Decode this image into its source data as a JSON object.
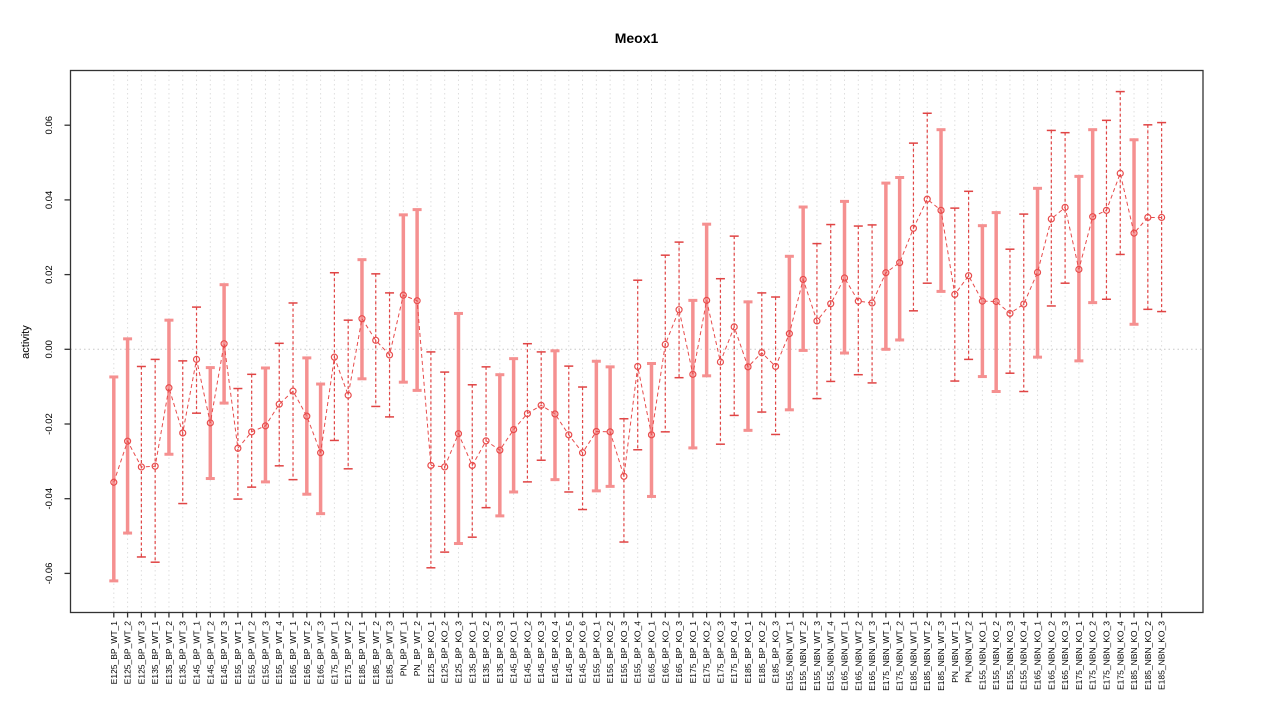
{
  "title": "Meox1",
  "y_axis": {
    "label": "activity"
  },
  "chart_data": {
    "type": "line",
    "title": "Meox1",
    "xlabel": "",
    "ylabel": "activity",
    "ylim": [
      -0.068,
      0.073
    ],
    "yticks": [
      -0.06,
      -0.04,
      -0.02,
      0.0,
      0.02,
      0.04,
      0.06
    ],
    "grid": "vertical-dotted-per-sample, dotted-zero-line",
    "legend_position": "none",
    "style": "open red circles connected by dashed red line, red error bars with caps",
    "colors": {
      "point": "#e84c4c",
      "line": "#e84c4c",
      "error_bar_thin": "#e04444",
      "error_bar_thick": "#f59090",
      "grid": "#dedede",
      "zero_line": "#c8c8c8",
      "axis": "#333333",
      "text": "#000000",
      "background": "#ffffff"
    },
    "points": [
      {
        "label": "E125_BP_WT_1",
        "lo": -0.062,
        "value": -0.0356,
        "hi": -0.0074
      },
      {
        "label": "E125_BP_WT_2",
        "lo": -0.0492,
        "value": -0.0246,
        "hi": 0.0028
      },
      {
        "label": "E125_BP_WT_3",
        "lo": -0.0556,
        "value": -0.0315,
        "hi": -0.0046
      },
      {
        "label": "E135_BP_WT_1",
        "lo": -0.057,
        "value": -0.0313,
        "hi": -0.0027
      },
      {
        "label": "E135_BP_WT_2",
        "lo": -0.0281,
        "value": -0.0103,
        "hi": 0.0078
      },
      {
        "label": "E135_BP_WT_3",
        "lo": -0.0413,
        "value": -0.0224,
        "hi": -0.0031
      },
      {
        "label": "E145_BP_WT_1",
        "lo": -0.0171,
        "value": -0.0027,
        "hi": 0.0113
      },
      {
        "label": "E145_BP_WT_2",
        "lo": -0.0346,
        "value": -0.0197,
        "hi": -0.0049
      },
      {
        "label": "E145_BP_WT_3",
        "lo": -0.0144,
        "value": 0.0015,
        "hi": 0.0173
      },
      {
        "label": "E155_BP_WT_1",
        "lo": -0.0401,
        "value": -0.0265,
        "hi": -0.0105
      },
      {
        "label": "E155_BP_WT_2",
        "lo": -0.0369,
        "value": -0.0221,
        "hi": -0.0067
      },
      {
        "label": "E155_BP_WT_3",
        "lo": -0.0355,
        "value": -0.0205,
        "hi": -0.005
      },
      {
        "label": "E155_BP_WT_4",
        "lo": -0.0312,
        "value": -0.0147,
        "hi": 0.0016
      },
      {
        "label": "E165_BP_WT_1",
        "lo": -0.0349,
        "value": -0.0112,
        "hi": 0.0124
      },
      {
        "label": "E165_BP_WT_2",
        "lo": -0.0388,
        "value": -0.0179,
        "hi": -0.0023
      },
      {
        "label": "E165_BP_WT_3",
        "lo": -0.044,
        "value": -0.0277,
        "hi": -0.0093
      },
      {
        "label": "E175_BP_WT_1",
        "lo": -0.0244,
        "value": -0.0021,
        "hi": 0.0205
      },
      {
        "label": "E175_BP_WT_2",
        "lo": -0.032,
        "value": -0.0123,
        "hi": 0.0078
      },
      {
        "label": "E185_BP_WT_1",
        "lo": -0.0079,
        "value": 0.0082,
        "hi": 0.024
      },
      {
        "label": "E185_BP_WT_2",
        "lo": -0.0153,
        "value": 0.0024,
        "hi": 0.0202
      },
      {
        "label": "E185_BP_WT_3",
        "lo": -0.0181,
        "value": -0.0015,
        "hi": 0.0151
      },
      {
        "label": "PN_BP_WT_1",
        "lo": -0.0088,
        "value": 0.0145,
        "hi": 0.036
      },
      {
        "label": "PN_BP_WT_2",
        "lo": -0.011,
        "value": 0.013,
        "hi": 0.0374
      },
      {
        "label": "E125_BP_KO_1",
        "lo": -0.0585,
        "value": -0.0311,
        "hi": -0.0007
      },
      {
        "label": "E125_BP_KO_2",
        "lo": -0.0543,
        "value": -0.0315,
        "hi": -0.0061
      },
      {
        "label": "E125_BP_KO_3",
        "lo": -0.052,
        "value": -0.0226,
        "hi": 0.0096
      },
      {
        "label": "E135_BP_KO_1",
        "lo": -0.0503,
        "value": -0.0311,
        "hi": -0.0095
      },
      {
        "label": "E135_BP_KO_2",
        "lo": -0.0424,
        "value": -0.0245,
        "hi": -0.0047
      },
      {
        "label": "E135_BP_KO_3",
        "lo": -0.0446,
        "value": -0.027,
        "hi": -0.0068
      },
      {
        "label": "E145_BP_KO_1",
        "lo": -0.0382,
        "value": -0.0215,
        "hi": -0.0025
      },
      {
        "label": "E145_BP_KO_2",
        "lo": -0.0355,
        "value": -0.0172,
        "hi": 0.0015
      },
      {
        "label": "E145_BP_KO_3",
        "lo": -0.0297,
        "value": -0.015,
        "hi": -0.0007
      },
      {
        "label": "E145_BP_KO_4",
        "lo": -0.0349,
        "value": -0.0173,
        "hi": -0.0004
      },
      {
        "label": "E145_BP_KO_5",
        "lo": -0.0382,
        "value": -0.0229,
        "hi": -0.0045
      },
      {
        "label": "E145_BP_KO_6",
        "lo": -0.0429,
        "value": -0.0277,
        "hi": -0.0101
      },
      {
        "label": "E155_BP_KO_1",
        "lo": -0.0379,
        "value": -0.022,
        "hi": -0.0032
      },
      {
        "label": "E155_BP_KO_2",
        "lo": -0.0367,
        "value": -0.0221,
        "hi": -0.0047
      },
      {
        "label": "E155_BP_KO_3",
        "lo": -0.0516,
        "value": -0.034,
        "hi": -0.0186
      },
      {
        "label": "E155_BP_KO_4",
        "lo": -0.0269,
        "value": -0.0046,
        "hi": 0.0185
      },
      {
        "label": "E165_BP_KO_1",
        "lo": -0.0394,
        "value": -0.0229,
        "hi": -0.0038
      },
      {
        "label": "E165_BP_KO_2",
        "lo": -0.0221,
        "value": 0.0013,
        "hi": 0.0252
      },
      {
        "label": "E165_BP_KO_3",
        "lo": -0.0076,
        "value": 0.0106,
        "hi": 0.0287
      },
      {
        "label": "E175_BP_KO_1",
        "lo": -0.0264,
        "value": -0.0067,
        "hi": 0.0131
      },
      {
        "label": "E175_BP_KO_2",
        "lo": -0.0071,
        "value": 0.0131,
        "hi": 0.0335
      },
      {
        "label": "E175_BP_KO_3",
        "lo": -0.0254,
        "value": -0.0034,
        "hi": 0.0189
      },
      {
        "label": "E175_BP_KO_4",
        "lo": -0.0177,
        "value": 0.006,
        "hi": 0.0303
      },
      {
        "label": "E185_BP_KO_1",
        "lo": -0.0217,
        "value": -0.0047,
        "hi": 0.0127
      },
      {
        "label": "E185_BP_KO_2",
        "lo": -0.0168,
        "value": -0.0009,
        "hi": 0.0151
      },
      {
        "label": "E185_BP_KO_3",
        "lo": -0.0228,
        "value": -0.0046,
        "hi": 0.014
      },
      {
        "label": "E155_NBN_WT_1",
        "lo": -0.0162,
        "value": 0.0042,
        "hi": 0.0249
      },
      {
        "label": "E155_NBN_WT_2",
        "lo": -0.0003,
        "value": 0.0187,
        "hi": 0.0381
      },
      {
        "label": "E155_NBN_WT_3",
        "lo": -0.0132,
        "value": 0.0076,
        "hi": 0.0283
      },
      {
        "label": "E155_NBN_WT_4",
        "lo": -0.0086,
        "value": 0.0122,
        "hi": 0.0334
      },
      {
        "label": "E165_NBN_WT_1",
        "lo": -0.001,
        "value": 0.0191,
        "hi": 0.0396
      },
      {
        "label": "E165_NBN_WT_2",
        "lo": -0.0068,
        "value": 0.0129,
        "hi": 0.033
      },
      {
        "label": "E165_NBN_WT_3",
        "lo": -0.009,
        "value": 0.0124,
        "hi": 0.0333
      },
      {
        "label": "E175_NBN_WT_1",
        "lo": 0.0,
        "value": 0.0205,
        "hi": 0.0445
      },
      {
        "label": "E175_NBN_WT_2",
        "lo": 0.0025,
        "value": 0.0232,
        "hi": 0.046
      },
      {
        "label": "E185_NBN_WT_1",
        "lo": 0.0103,
        "value": 0.0324,
        "hi": 0.0552
      },
      {
        "label": "E185_NBN_WT_2",
        "lo": 0.0177,
        "value": 0.0402,
        "hi": 0.0632
      },
      {
        "label": "E185_NBN_WT_3",
        "lo": 0.0155,
        "value": 0.0372,
        "hi": 0.0588
      },
      {
        "label": "PN_NBN_WT_1",
        "lo": -0.0085,
        "value": 0.0147,
        "hi": 0.0378
      },
      {
        "label": "PN_NBN_WT_2",
        "lo": -0.0027,
        "value": 0.0197,
        "hi": 0.0423
      },
      {
        "label": "E155_NBN_KO_1",
        "lo": -0.0073,
        "value": 0.0129,
        "hi": 0.0331
      },
      {
        "label": "E155_NBN_KO_2",
        "lo": -0.0113,
        "value": 0.0128,
        "hi": 0.0366
      },
      {
        "label": "E155_NBN_KO_3",
        "lo": -0.0064,
        "value": 0.0096,
        "hi": 0.0268
      },
      {
        "label": "E155_NBN_KO_4",
        "lo": -0.0113,
        "value": 0.0121,
        "hi": 0.0362
      },
      {
        "label": "E165_NBN_KO_1",
        "lo": -0.0021,
        "value": 0.0206,
        "hi": 0.0431
      },
      {
        "label": "E165_NBN_KO_2",
        "lo": 0.0116,
        "value": 0.0349,
        "hi": 0.0586
      },
      {
        "label": "E165_NBN_KO_3",
        "lo": 0.0177,
        "value": 0.038,
        "hi": 0.058
      },
      {
        "label": "E175_NBN_KO_1",
        "lo": -0.0031,
        "value": 0.0214,
        "hi": 0.0463
      },
      {
        "label": "E175_NBN_KO_2",
        "lo": 0.0125,
        "value": 0.0355,
        "hi": 0.0588
      },
      {
        "label": "E175_NBN_KO_3",
        "lo": 0.0134,
        "value": 0.0372,
        "hi": 0.0613
      },
      {
        "label": "E175_NBN_KO_4",
        "lo": 0.0254,
        "value": 0.0471,
        "hi": 0.069
      },
      {
        "label": "E185_NBN_KO_1",
        "lo": 0.0067,
        "value": 0.0311,
        "hi": 0.0561
      },
      {
        "label": "E185_NBN_KO_2",
        "lo": 0.0107,
        "value": 0.0353,
        "hi": 0.0601
      },
      {
        "label": "E185_NBN_KO_3",
        "lo": 0.0101,
        "value": 0.0353,
        "hi": 0.0607
      }
    ]
  }
}
